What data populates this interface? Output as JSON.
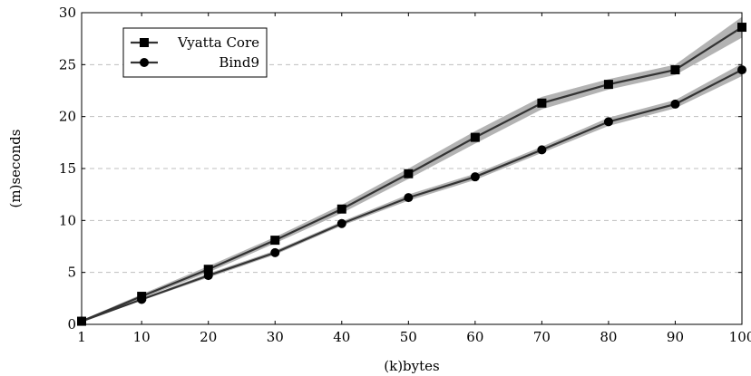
{
  "chart_data": {
    "type": "line",
    "xlabel": "(k)bytes",
    "ylabel": "(m)seconds",
    "x": [
      1,
      10,
      20,
      30,
      40,
      50,
      60,
      70,
      80,
      90,
      100
    ],
    "x_ticks": [
      "1",
      "10",
      "20",
      "30",
      "40",
      "50",
      "60",
      "70",
      "80",
      "90",
      "100"
    ],
    "y_ticks": [
      "0",
      "5",
      "10",
      "15",
      "20",
      "25",
      "30"
    ],
    "xlim": [
      1,
      100
    ],
    "ylim": [
      0,
      30
    ],
    "grid": "horizontal dashed",
    "legend_position": "top-left",
    "series": [
      {
        "name": "Vyatta Core",
        "marker": "square",
        "values": [
          0.3,
          2.7,
          5.3,
          8.1,
          11.1,
          14.5,
          18.0,
          21.3,
          23.1,
          24.5,
          28.6
        ],
        "lower": [
          0.2,
          2.5,
          5.0,
          7.8,
          10.7,
          14.0,
          17.4,
          20.7,
          22.6,
          24.0,
          27.6
        ],
        "upper": [
          0.4,
          2.9,
          5.6,
          8.4,
          11.5,
          15.0,
          18.6,
          21.9,
          23.6,
          25.0,
          29.6
        ]
      },
      {
        "name": "Bind9",
        "marker": "circle",
        "values": [
          0.3,
          2.4,
          4.7,
          6.9,
          9.7,
          12.2,
          14.2,
          16.8,
          19.5,
          21.2,
          24.5
        ],
        "lower": [
          0.2,
          2.3,
          4.5,
          6.7,
          9.5,
          11.9,
          13.9,
          16.5,
          19.1,
          20.8,
          23.9
        ],
        "upper": [
          0.4,
          2.5,
          4.9,
          7.1,
          9.9,
          12.5,
          14.5,
          17.1,
          19.9,
          21.6,
          25.1
        ]
      }
    ],
    "colors": {
      "line": "#333333",
      "band": "#b3b3b3",
      "grid": "#bfbfbf"
    }
  }
}
